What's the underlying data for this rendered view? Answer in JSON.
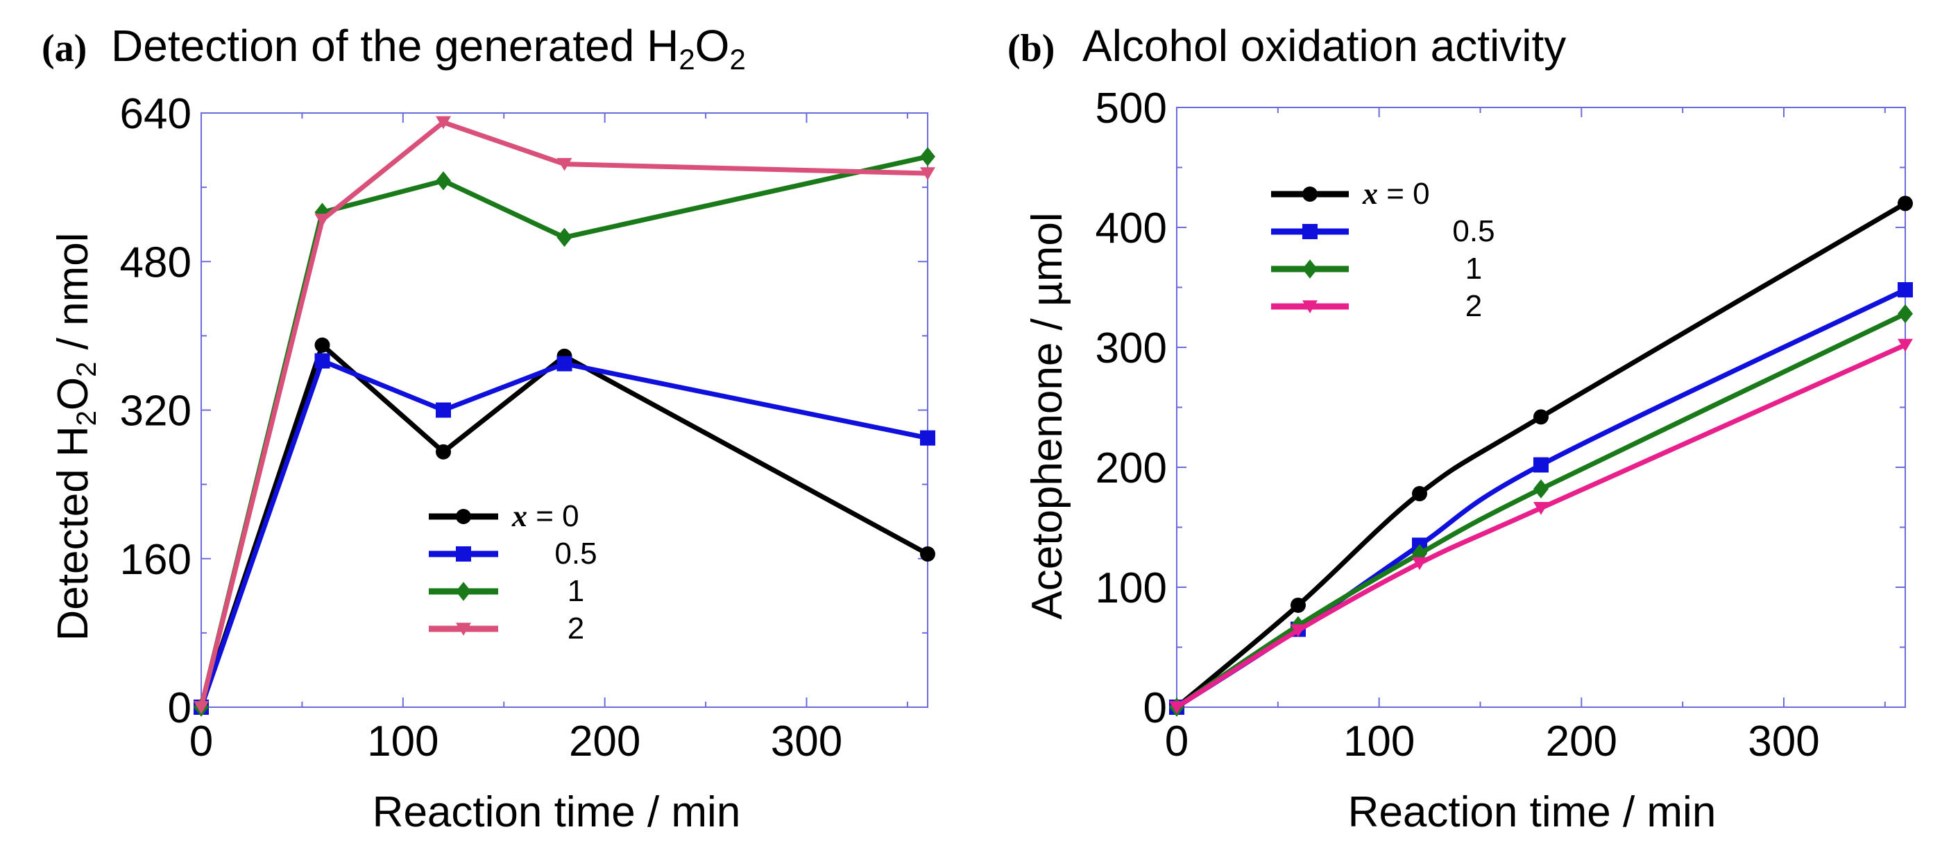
{
  "chart_data": [
    {
      "type": "line",
      "panel_label": "(a)",
      "title": "Detection of the generated H",
      "title_sub1": "2",
      "title_mid": "O",
      "title_sub2": "2",
      "xlabel": "Reaction time / min",
      "ylabel_pre": "Detected H",
      "ylabel_sub1": "2",
      "ylabel_mid": "O",
      "ylabel_sub2": "2",
      "ylabel_post": " / nmol",
      "xlim": [
        0,
        360
      ],
      "ylim": [
        0,
        640
      ],
      "xticks": [
        0,
        100,
        200,
        300
      ],
      "yticks": [
        0,
        160,
        320,
        480,
        640
      ],
      "x": [
        0,
        60,
        120,
        180,
        360
      ],
      "series": [
        {
          "name": "0",
          "color": "#000000",
          "marker": "circle",
          "values": [
            0,
            390,
            275,
            378,
            165
          ]
        },
        {
          "name": "0.5",
          "color": "#1010dd",
          "marker": "square",
          "values": [
            0,
            373,
            320,
            370,
            290
          ]
        },
        {
          "name": "1",
          "color": "#1a7a1a",
          "marker": "diamond",
          "values": [
            0,
            533,
            567,
            506,
            593
          ]
        },
        {
          "name": "2",
          "color": "#d9507a",
          "marker": "triangle-down",
          "values": [
            0,
            525,
            630,
            585,
            575
          ]
        }
      ],
      "legend_var": "x",
      "legend_eq": " = ",
      "legend_position": "lower-center"
    },
    {
      "type": "line",
      "panel_label": "(b)",
      "title": "Alcohol oxidation activity",
      "xlabel": "Reaction time / min",
      "ylabel": "Acetophenone / µmol",
      "xlim": [
        0,
        360
      ],
      "ylim": [
        0,
        500
      ],
      "xticks": [
        0,
        100,
        200,
        300
      ],
      "yticks": [
        0,
        100,
        200,
        300,
        400,
        500
      ],
      "x": [
        0,
        60,
        120,
        180,
        360
      ],
      "series": [
        {
          "name": "0",
          "color": "#000000",
          "marker": "circle",
          "values": [
            0,
            85,
            178,
            242,
            420
          ]
        },
        {
          "name": "0.5",
          "color": "#1010dd",
          "marker": "square",
          "values": [
            0,
            65,
            135,
            202,
            348
          ]
        },
        {
          "name": "1",
          "color": "#1a7a1a",
          "marker": "diamond",
          "values": [
            0,
            68,
            128,
            182,
            328
          ]
        },
        {
          "name": "2",
          "color": "#e8208c",
          "marker": "triangle-down",
          "values": [
            0,
            64,
            120,
            166,
            302
          ]
        }
      ],
      "legend_var": "x",
      "legend_eq": " = ",
      "legend_position": "upper-left"
    }
  ]
}
